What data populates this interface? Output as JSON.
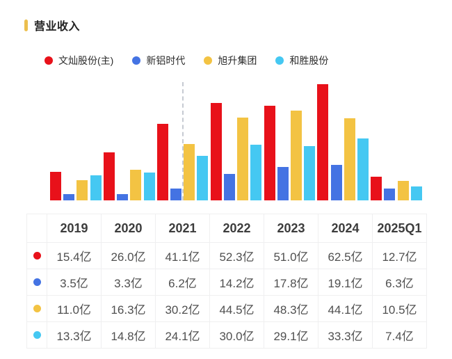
{
  "header": {
    "title": "营业收入",
    "marker_color": "#ecbf4e"
  },
  "legend": [
    {
      "label": "文灿股份(主)",
      "color": "#e8111a"
    },
    {
      "label": "新铝时代",
      "color": "#4473e3"
    },
    {
      "label": "旭升集团",
      "color": "#f3c343"
    },
    {
      "label": "和胜股份",
      "color": "#45c8f2"
    }
  ],
  "chart_data": {
    "type": "bar",
    "title": "营业收入",
    "unit": "亿",
    "categories": [
      "2019",
      "2020",
      "2021",
      "2022",
      "2023",
      "2024",
      "2025Q1"
    ],
    "series": [
      {
        "name": "文灿股份(主)",
        "color": "#e8111a",
        "values": [
          15.4,
          26.0,
          41.1,
          52.3,
          51.0,
          62.5,
          12.7
        ]
      },
      {
        "name": "新铝时代",
        "color": "#4473e3",
        "values": [
          3.5,
          3.3,
          6.2,
          14.2,
          17.8,
          19.1,
          6.3
        ]
      },
      {
        "name": "旭升集团",
        "color": "#f3c343",
        "values": [
          11.0,
          16.3,
          30.2,
          44.5,
          48.3,
          44.1,
          10.5
        ]
      },
      {
        "name": "和胜股份",
        "color": "#45c8f2",
        "values": [
          13.3,
          14.8,
          24.1,
          30.0,
          29.1,
          33.3,
          7.4
        ]
      }
    ],
    "ylim": [
      0,
      63.7
    ],
    "grid": false,
    "legend_position": "top",
    "marker_line": {
      "style": "dashed",
      "location": "left edge of 2021 旭升集团 bar"
    }
  },
  "table": {
    "columns": [
      "",
      "2019",
      "2020",
      "2021",
      "2022",
      "2023",
      "2024",
      "2025Q1"
    ],
    "rows": [
      {
        "series": "文灿股份(主)",
        "color": "#e8111a",
        "cells": [
          "15.4亿",
          "26.0亿",
          "41.1亿",
          "52.3亿",
          "51.0亿",
          "62.5亿",
          "12.7亿"
        ]
      },
      {
        "series": "新铝时代",
        "color": "#4473e3",
        "cells": [
          "3.5亿",
          "3.3亿",
          "6.2亿",
          "14.2亿",
          "17.8亿",
          "19.1亿",
          "6.3亿"
        ]
      },
      {
        "series": "旭升集团",
        "color": "#f3c343",
        "cells": [
          "11.0亿",
          "16.3亿",
          "30.2亿",
          "44.5亿",
          "48.3亿",
          "44.1亿",
          "10.5亿"
        ]
      },
      {
        "series": "和胜股份",
        "color": "#45c8f2",
        "cells": [
          "13.3亿",
          "14.8亿",
          "24.1亿",
          "30.0亿",
          "29.1亿",
          "33.3亿",
          "7.4亿"
        ]
      }
    ]
  }
}
